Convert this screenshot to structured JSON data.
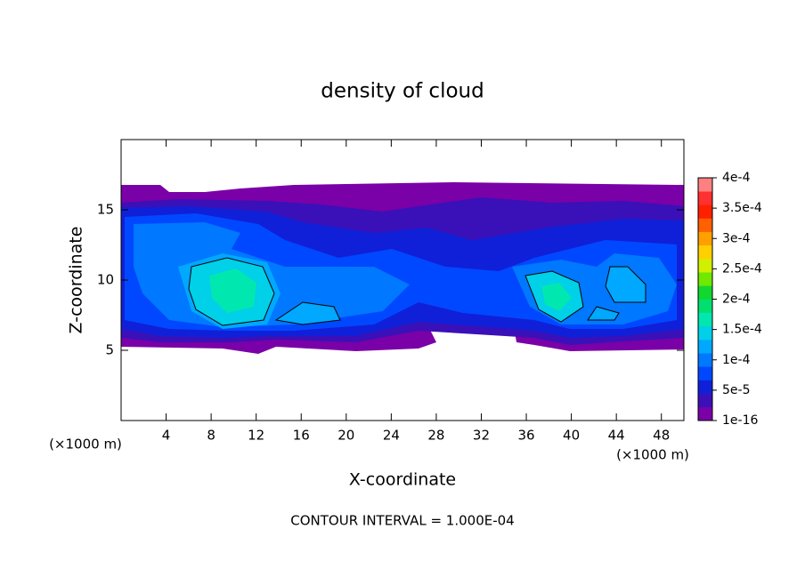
{
  "chart_data": {
    "type": "contour",
    "title": "density of cloud",
    "x_label": "X-coordinate",
    "y_label": "Z-coordinate",
    "x_unit": "(×1000 m)",
    "y_unit": "(×1000 m)",
    "footer": "CONTOUR INTERVAL = 1.000E-04",
    "xlim": [
      0,
      50
    ],
    "xticks": [
      4,
      8,
      12,
      16,
      20,
      24,
      28,
      32,
      36,
      40,
      44,
      48
    ],
    "ylim": [
      0,
      20
    ],
    "yticks": [
      5,
      10,
      15
    ],
    "colorbar": {
      "ticks": [
        1e-16,
        {
          "value": 5e-05,
          "label": "5e-5"
        },
        {
          "value": 0.0001,
          "label": "1e-4"
        },
        {
          "value": 0.00015,
          "label": "1.5e-4"
        },
        {
          "value": 0.0002,
          "label": "2e-4"
        },
        {
          "value": 0.00025,
          "label": "2.5e-4"
        },
        {
          "value": 0.0003,
          "label": "3e-4"
        },
        {
          "value": 0.00035,
          "label": "3.5e-4"
        },
        {
          "value": 0.0004,
          "label": "4e-4"
        }
      ],
      "colors": [
        "#7a00a8",
        "#3a10b8",
        "#1020d8",
        "#0048ff",
        "#0078ff",
        "#00a8ff",
        "#00d0e8",
        "#00e8b0",
        "#00e070",
        "#10d830",
        "#70e800",
        "#d0f000",
        "#ffd000",
        "#ffa000",
        "#ff6000",
        "#ff2000",
        "#ff3030",
        "#ff8080"
      ]
    }
  }
}
